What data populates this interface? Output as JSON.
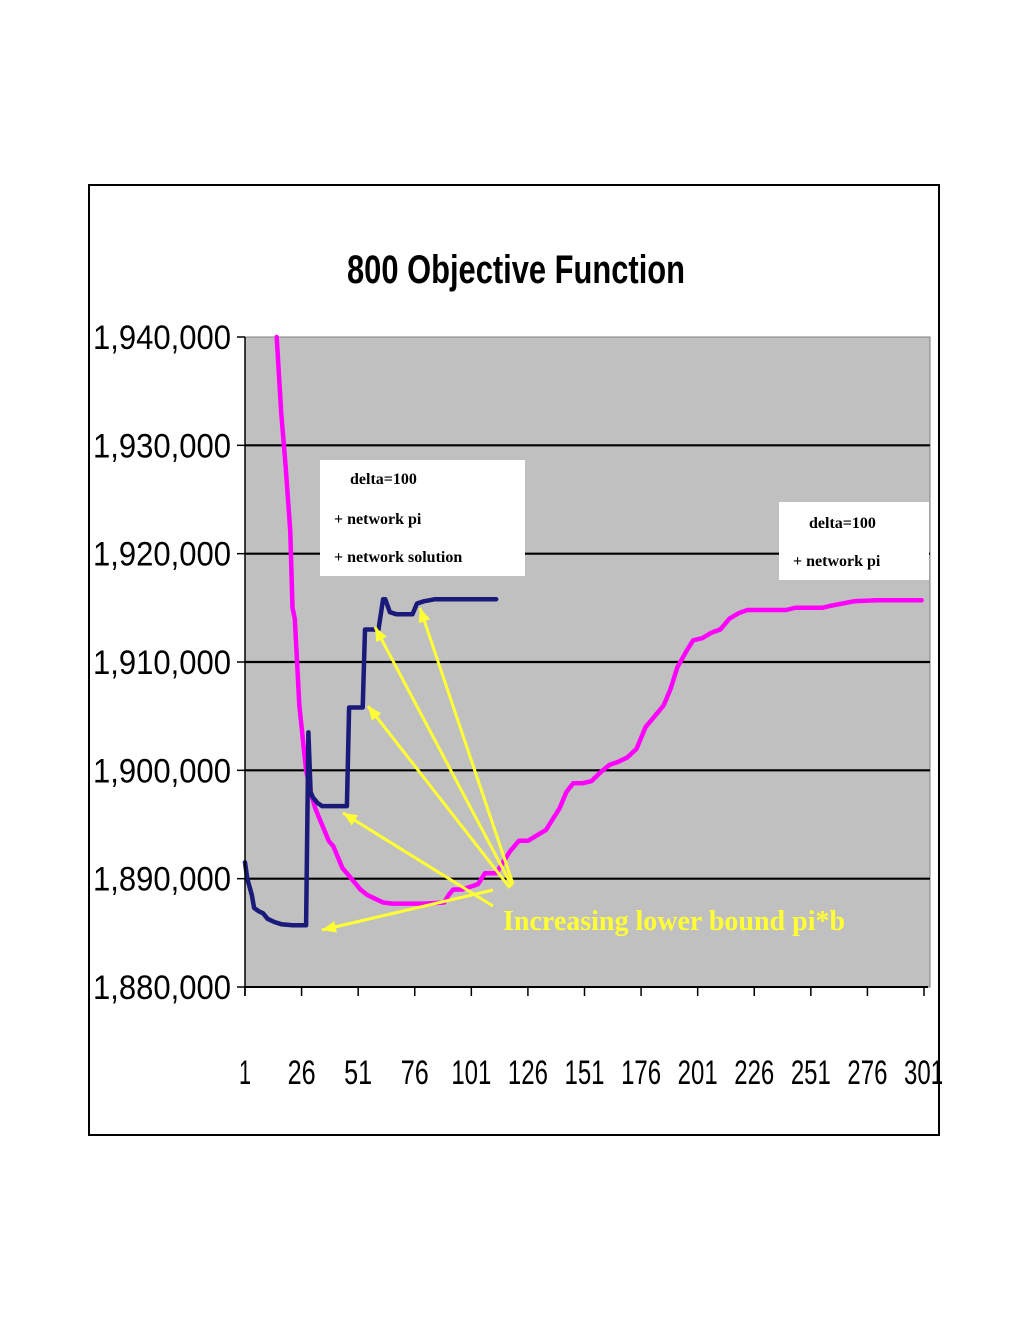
{
  "chart_data": {
    "type": "line",
    "title": "800 Objective Function",
    "xlabel": "",
    "ylabel": "",
    "x_ticks": [
      "1",
      "26",
      "51",
      "76",
      "101",
      "126",
      "151",
      "176",
      "201",
      "226",
      "251",
      "276",
      "301"
    ],
    "y_ticks": [
      "1,940,000",
      "1,930,000",
      "1,920,000",
      "1,910,000",
      "1,900,000",
      "1,890,000",
      "1,880,000"
    ],
    "xlim": [
      1,
      301
    ],
    "ylim": [
      1880000,
      1940000
    ],
    "grid": true,
    "plot_background": "#c0c0c0",
    "series": [
      {
        "color": "#ff00ff",
        "points": [
          [
            15,
            1940000
          ],
          [
            17,
            1933000
          ],
          [
            19,
            1928000
          ],
          [
            21,
            1922000
          ],
          [
            22,
            1915000
          ],
          [
            23,
            1914000
          ],
          [
            24,
            1910000
          ],
          [
            25,
            1906000
          ],
          [
            26,
            1904000
          ],
          [
            27,
            1902000
          ],
          [
            28,
            1900000
          ],
          [
            30,
            1898000
          ],
          [
            32,
            1896500
          ],
          [
            34,
            1895500
          ],
          [
            36,
            1894500
          ],
          [
            38,
            1893500
          ],
          [
            40,
            1893000
          ],
          [
            42,
            1892000
          ],
          [
            44,
            1891000
          ],
          [
            46,
            1890500
          ],
          [
            48,
            1890000
          ],
          [
            50,
            1889500
          ],
          [
            52,
            1889000
          ],
          [
            55,
            1888500
          ],
          [
            58,
            1888200
          ],
          [
            62,
            1887800
          ],
          [
            66,
            1887700
          ],
          [
            71,
            1887700
          ],
          [
            80,
            1887700
          ],
          [
            89,
            1887800
          ],
          [
            91,
            1888500
          ],
          [
            93,
            1889000
          ],
          [
            97,
            1889000
          ],
          [
            104,
            1889500
          ],
          [
            107,
            1890500
          ],
          [
            112,
            1890500
          ],
          [
            115,
            1891500
          ],
          [
            118,
            1892500
          ],
          [
            122,
            1893500
          ],
          [
            126,
            1893500
          ],
          [
            130,
            1894000
          ],
          [
            134,
            1894500
          ],
          [
            137,
            1895500
          ],
          [
            140,
            1896500
          ],
          [
            143,
            1898000
          ],
          [
            146,
            1898800
          ],
          [
            150,
            1898800
          ],
          [
            154,
            1899000
          ],
          [
            158,
            1899800
          ],
          [
            162,
            1900500
          ],
          [
            166,
            1900800
          ],
          [
            170,
            1901200
          ],
          [
            174,
            1902000
          ],
          [
            178,
            1904000
          ],
          [
            182,
            1905000
          ],
          [
            186,
            1906000
          ],
          [
            189,
            1907500
          ],
          [
            192,
            1909500
          ],
          [
            196,
            1911000
          ],
          [
            199,
            1912000
          ],
          [
            203,
            1912200
          ],
          [
            207,
            1912700
          ],
          [
            211,
            1913000
          ],
          [
            215,
            1914000
          ],
          [
            219,
            1914500
          ],
          [
            223,
            1914800
          ],
          [
            228,
            1914800
          ],
          [
            235,
            1914800
          ],
          [
            240,
            1914800
          ],
          [
            244,
            1915000
          ],
          [
            250,
            1915000
          ],
          [
            256,
            1915000
          ],
          [
            260,
            1915200
          ],
          [
            265,
            1915400
          ],
          [
            270,
            1915600
          ],
          [
            280,
            1915700
          ],
          [
            300,
            1915700
          ]
        ]
      },
      {
        "color": "#1a1a7a",
        "points": [
          [
            1,
            1891500
          ],
          [
            2,
            1890000
          ],
          [
            4,
            1888500
          ],
          [
            5,
            1887300
          ],
          [
            7,
            1887000
          ],
          [
            9,
            1886800
          ],
          [
            11,
            1886300
          ],
          [
            14,
            1886000
          ],
          [
            17,
            1885800
          ],
          [
            22,
            1885700
          ],
          [
            28,
            1885700
          ],
          [
            29,
            1903500
          ],
          [
            30,
            1898000
          ],
          [
            31,
            1897500
          ],
          [
            33,
            1897000
          ],
          [
            35,
            1896700
          ],
          [
            40,
            1896700
          ],
          [
            46,
            1896700
          ],
          [
            47,
            1905800
          ],
          [
            51,
            1905800
          ],
          [
            53,
            1905800
          ],
          [
            54,
            1913000
          ],
          [
            56,
            1913000
          ],
          [
            60,
            1913000
          ],
          [
            62,
            1915800
          ],
          [
            63,
            1915800
          ],
          [
            65,
            1914600
          ],
          [
            68,
            1914400
          ],
          [
            75,
            1914400
          ],
          [
            77,
            1915400
          ],
          [
            80,
            1915600
          ],
          [
            85,
            1915800
          ],
          [
            112,
            1915800
          ]
        ]
      }
    ]
  },
  "annotations": {
    "box1": {
      "line1": "delta=100",
      "line2": "+ network pi",
      "line3": "+ network solution"
    },
    "box2": {
      "line1": "delta=100",
      "line2": "+ network pi"
    },
    "lower_bound_label": "Increasing lower bound  pi*b",
    "arrow_color": "#ffff33"
  }
}
